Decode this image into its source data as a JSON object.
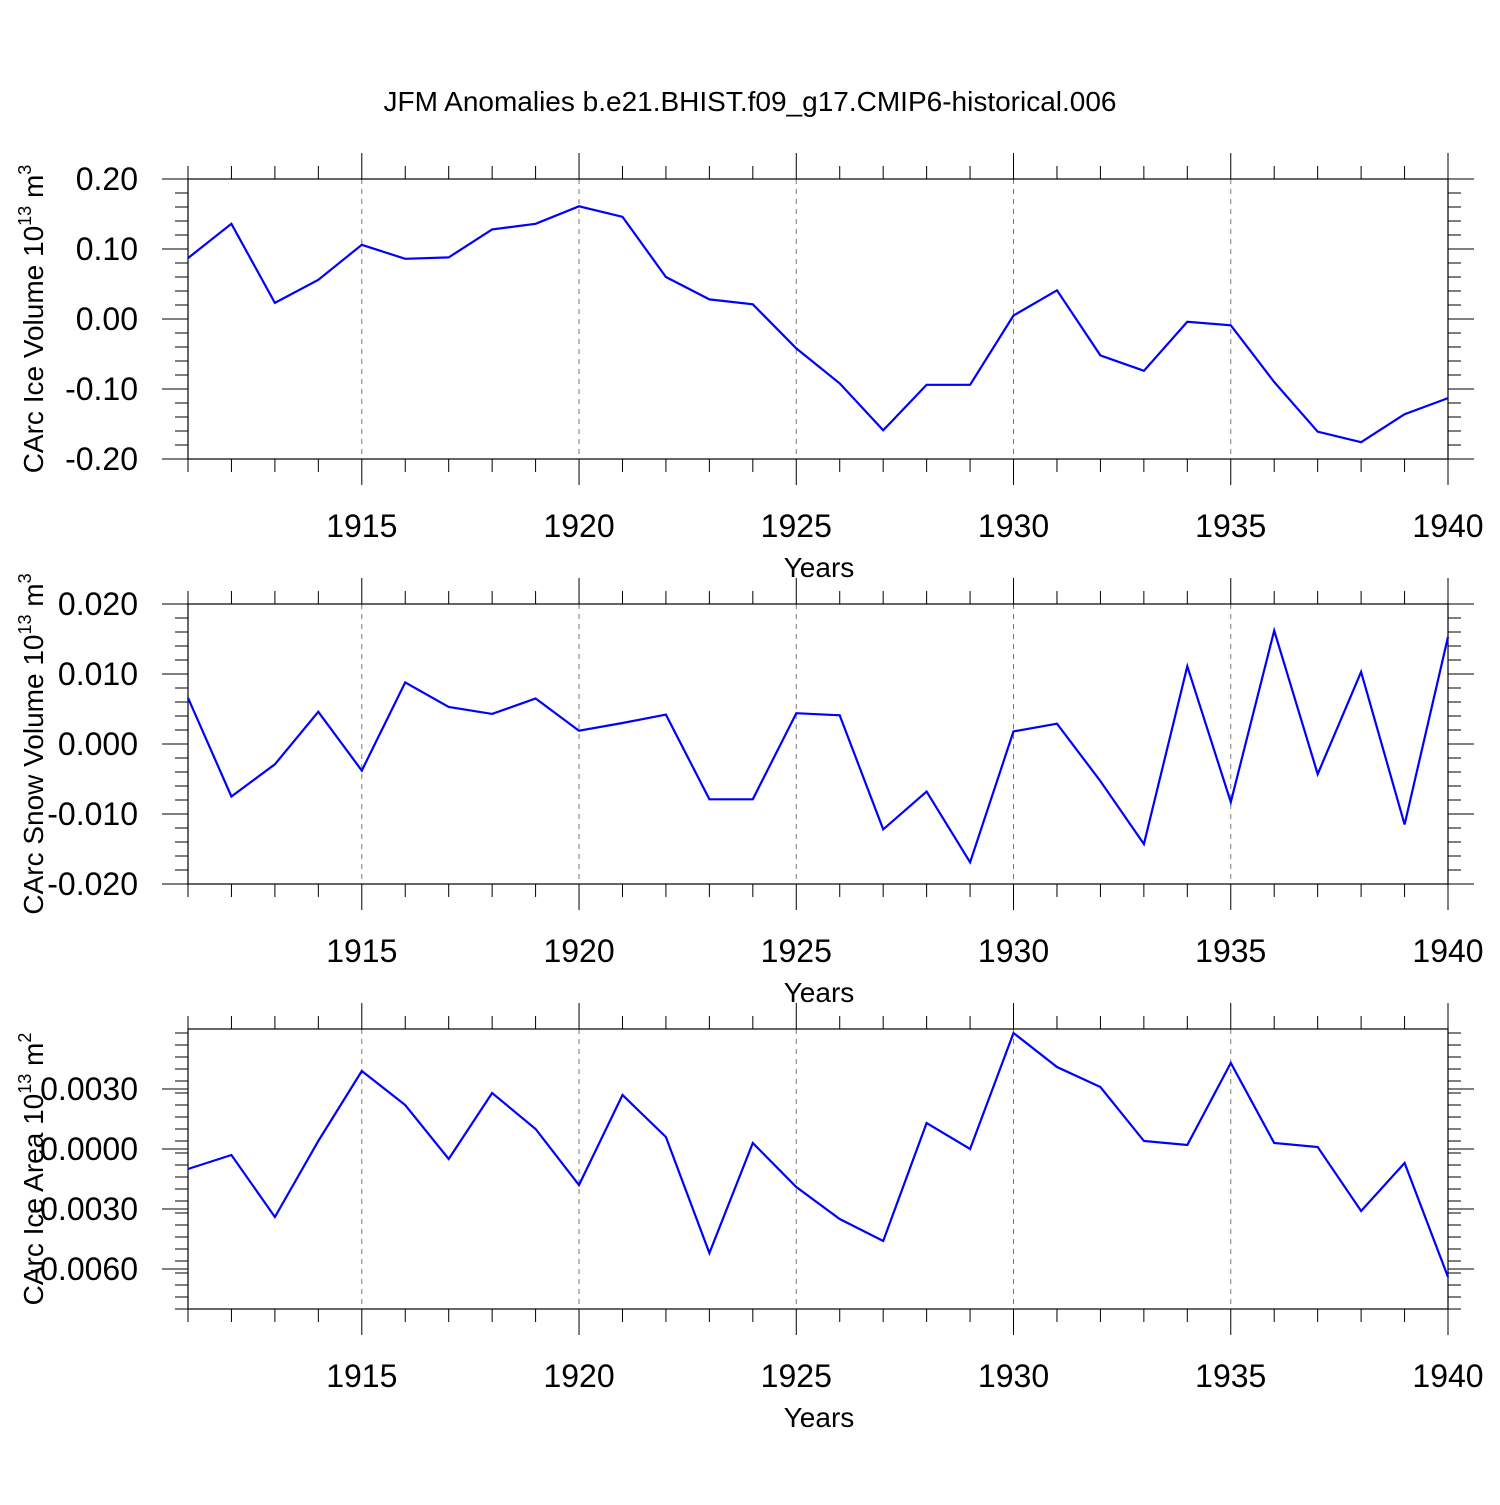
{
  "title": "JFM Anomalies b.e21.BHIST.f09_g17.CMIP6-historical.006",
  "colors": {
    "line": "#0000ff",
    "axis": "#000000",
    "grid": "#777777"
  },
  "chart_data": [
    {
      "type": "line",
      "title": "",
      "xlabel": "Years",
      "ylabel": "CArc Ice Volume 10",
      "ylabel_exp": "13",
      "ylabel_unit": " m",
      "ylabel_unit_exp": "3",
      "x": [
        1911,
        1912,
        1913,
        1914,
        1915,
        1916,
        1917,
        1918,
        1919,
        1920,
        1921,
        1922,
        1923,
        1924,
        1925,
        1926,
        1927,
        1928,
        1929,
        1930,
        1931,
        1932,
        1933,
        1934,
        1935,
        1936,
        1937,
        1938,
        1939,
        1940
      ],
      "series": [
        {
          "name": "CArc Ice Volume",
          "values": [
            0.087,
            0.136,
            0.023,
            0.056,
            0.106,
            0.086,
            0.088,
            0.128,
            0.136,
            0.161,
            0.146,
            0.06,
            0.028,
            0.021,
            -0.042,
            -0.092,
            -0.159,
            -0.094,
            -0.094,
            0.005,
            0.041,
            -0.052,
            -0.074,
            -0.004,
            -0.009,
            -0.09,
            -0.161,
            -0.176,
            -0.136,
            -0.113
          ]
        }
      ],
      "xlim": [
        1911,
        1940
      ],
      "ylim": [
        -0.2,
        0.2
      ],
      "x_ticks": [
        1915,
        1920,
        1925,
        1930,
        1935,
        1940
      ],
      "x_tick_labels": [
        "1915",
        "1920",
        "1925",
        "1930",
        "1935",
        "1940"
      ],
      "y_ticks": [
        0.2,
        0.1,
        0.0,
        -0.1,
        -0.2
      ],
      "y_tick_labels": [
        "0.20",
        "0.10",
        "0.00",
        "-0.10",
        "-0.20"
      ],
      "y_minor_step": 0.02,
      "grid": "vertical dashed at major x ticks"
    },
    {
      "type": "line",
      "title": "",
      "xlabel": "Years",
      "ylabel": "CArc Snow Volume 10",
      "ylabel_exp": "13",
      "ylabel_unit": " m",
      "ylabel_unit_exp": "3",
      "x": [
        1911,
        1912,
        1913,
        1914,
        1915,
        1916,
        1917,
        1918,
        1919,
        1920,
        1921,
        1922,
        1923,
        1924,
        1925,
        1926,
        1927,
        1928,
        1929,
        1930,
        1931,
        1932,
        1933,
        1934,
        1935,
        1936,
        1937,
        1938,
        1939,
        1940
      ],
      "series": [
        {
          "name": "CArc Snow Volume",
          "values": [
            0.0066,
            -0.0075,
            -0.0029,
            0.0046,
            -0.0038,
            0.0088,
            0.0053,
            0.0043,
            0.0065,
            0.0019,
            0.003,
            0.0042,
            -0.0079,
            -0.0079,
            0.0044,
            0.0041,
            -0.0122,
            -0.0068,
            -0.0169,
            0.0018,
            0.0029,
            -0.0053,
            -0.0143,
            0.0111,
            -0.0083,
            0.0162,
            -0.0043,
            0.0103,
            -0.0115,
            0.0153
          ]
        }
      ],
      "xlim": [
        1911,
        1940
      ],
      "ylim": [
        -0.02,
        0.02
      ],
      "x_ticks": [
        1915,
        1920,
        1925,
        1930,
        1935,
        1940
      ],
      "x_tick_labels": [
        "1915",
        "1920",
        "1925",
        "1930",
        "1935",
        "1940"
      ],
      "y_ticks": [
        0.02,
        0.01,
        0.0,
        -0.01,
        -0.02
      ],
      "y_tick_labels": [
        "0.020",
        "0.010",
        "0.000",
        "-0.010",
        "-0.020"
      ],
      "y_minor_step": 0.002,
      "grid": "vertical dashed at major x ticks"
    },
    {
      "type": "line",
      "title": "",
      "xlabel": "Years",
      "ylabel": "CArc Ice Area 10",
      "ylabel_exp": "13",
      "ylabel_unit": " m",
      "ylabel_unit_exp": "2",
      "x": [
        1911,
        1912,
        1913,
        1914,
        1915,
        1916,
        1917,
        1918,
        1919,
        1920,
        1921,
        1922,
        1923,
        1924,
        1925,
        1926,
        1927,
        1928,
        1929,
        1930,
        1931,
        1932,
        1933,
        1934,
        1935,
        1936,
        1937,
        1938,
        1939,
        1940
      ],
      "series": [
        {
          "name": "CArc Ice Area",
          "values": [
            -0.001,
            -0.0003,
            -0.0034,
            0.0004,
            0.0039,
            0.0022,
            -0.0005,
            0.0028,
            0.001,
            -0.0018,
            0.0027,
            0.0006,
            -0.0052,
            0.0003,
            -0.0019,
            -0.0035,
            -0.0046,
            0.0013,
            0.0,
            0.0058,
            0.0041,
            0.0031,
            0.0004,
            0.0002,
            0.0043,
            0.0003,
            0.0001,
            -0.0031,
            -0.0007,
            -0.0064
          ]
        }
      ],
      "xlim": [
        1911,
        1940
      ],
      "ylim": [
        -0.008,
        0.006
      ],
      "x_ticks": [
        1915,
        1920,
        1925,
        1930,
        1935,
        1940
      ],
      "x_tick_labels": [
        "1915",
        "1920",
        "1925",
        "1930",
        "1935",
        "1940"
      ],
      "y_ticks": [
        0.003,
        0.0,
        -0.003,
        -0.006
      ],
      "y_tick_labels": [
        "0.0030",
        "0.0000",
        "-0.0030",
        "-0.0060"
      ],
      "y_minor_step": 0.0006,
      "grid": "vertical dashed at major x ticks"
    }
  ]
}
